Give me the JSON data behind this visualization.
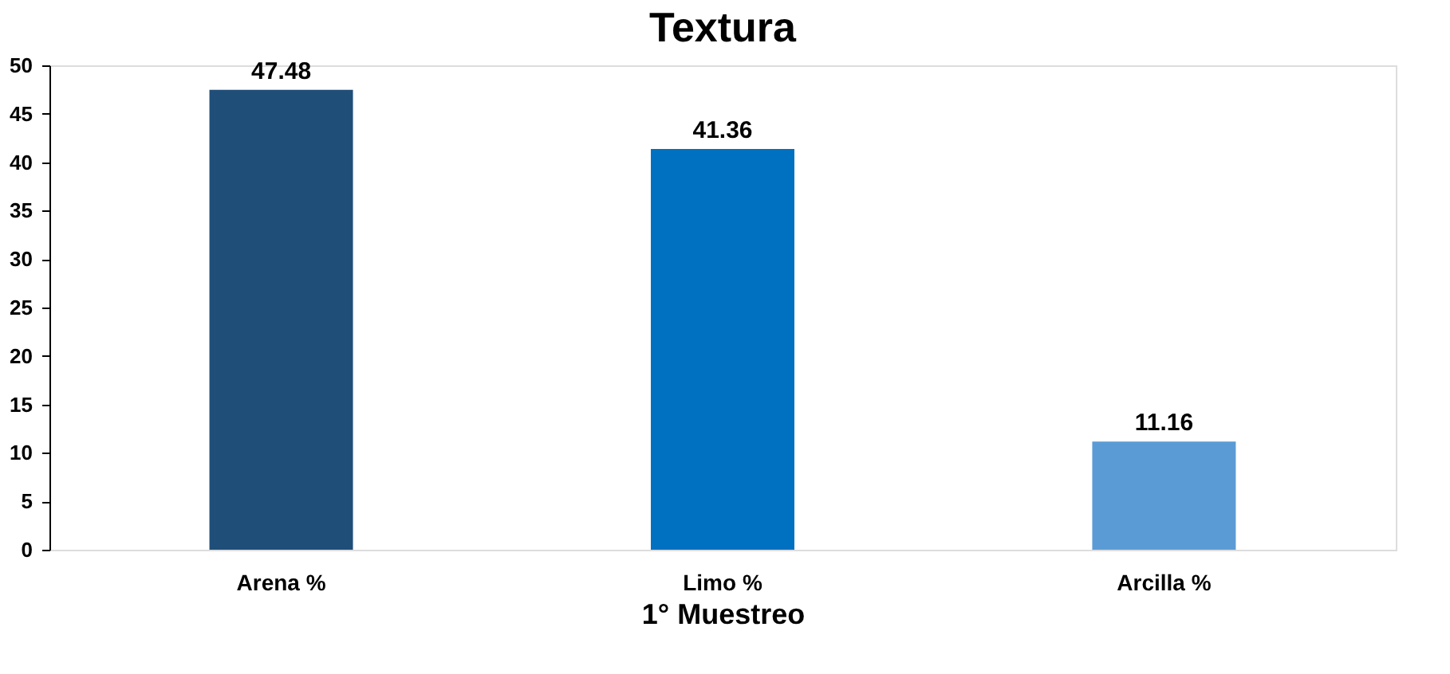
{
  "chart_data": {
    "type": "bar",
    "title": "Textura",
    "xlabel": "1° Muestreo",
    "categories": [
      "Arena %",
      "Limo %",
      "Arcilla %"
    ],
    "values": [
      47.48,
      41.36,
      11.16
    ],
    "colors": [
      "#1f4e79",
      "#0070c0",
      "#5b9bd5"
    ],
    "ylim": [
      0,
      50
    ],
    "yticks": [
      0,
      5,
      10,
      15,
      20,
      25,
      30,
      35,
      40,
      45,
      50
    ],
    "data_labels": true,
    "grid": false
  }
}
